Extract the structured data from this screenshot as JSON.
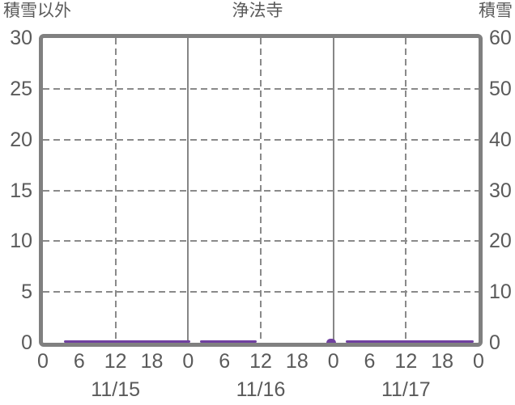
{
  "chart_data": {
    "type": "line",
    "title": "浄法寺",
    "x": {
      "unit": "hour",
      "min": 0,
      "max": 72,
      "tick_step": 6,
      "tick_hours": [
        0,
        6,
        12,
        18,
        24,
        30,
        36,
        42,
        48,
        54,
        60,
        66,
        72
      ],
      "tick_labels": [
        "0",
        "6",
        "12",
        "18",
        "0",
        "6",
        "12",
        "18",
        "0",
        "6",
        "12",
        "18",
        "0"
      ],
      "day_labels": [
        "11/15",
        "11/16",
        "11/17"
      ],
      "day_label_center_hours": [
        12,
        36,
        60
      ],
      "solid_gridline_hours": [
        24,
        48
      ],
      "dashed_gridline_hours": [
        12,
        36,
        60
      ]
    },
    "y_left": {
      "label": "積雪以外",
      "min": 0,
      "max": 30,
      "tick_step": 5,
      "tick_values": [
        0,
        5,
        10,
        15,
        20,
        25,
        30
      ],
      "tick_labels": [
        "0",
        "5",
        "10",
        "15",
        "20",
        "25",
        "30"
      ],
      "gridline_values": [
        5,
        10,
        15,
        20,
        25
      ],
      "gridline_style": "dashed"
    },
    "y_right": {
      "label": "積雪",
      "min": 0,
      "max": 60,
      "tick_step": 10,
      "tick_values": [
        0,
        10,
        20,
        30,
        40,
        50,
        60
      ],
      "tick_labels": [
        "0",
        "10",
        "20",
        "30",
        "40",
        "50",
        "60"
      ]
    },
    "series": [
      {
        "name": "zero-value-line",
        "color": "#7040a0",
        "value": 0,
        "segments_hours": [
          {
            "start": 3.5,
            "end": 24.4,
            "bump": false
          },
          {
            "start": 26.0,
            "end": 35.3,
            "bump": false
          },
          {
            "start": 46.9,
            "end": 48.5,
            "bump": true
          },
          {
            "start": 50.1,
            "end": 71.2,
            "bump": false
          }
        ]
      }
    ],
    "colors": {
      "frame": "#808080",
      "grid": "#8a8a8a",
      "text": "#5a5a5a",
      "background": "#ffffff",
      "series": "#7040a0"
    },
    "legend": "none",
    "grid_on": true
  }
}
